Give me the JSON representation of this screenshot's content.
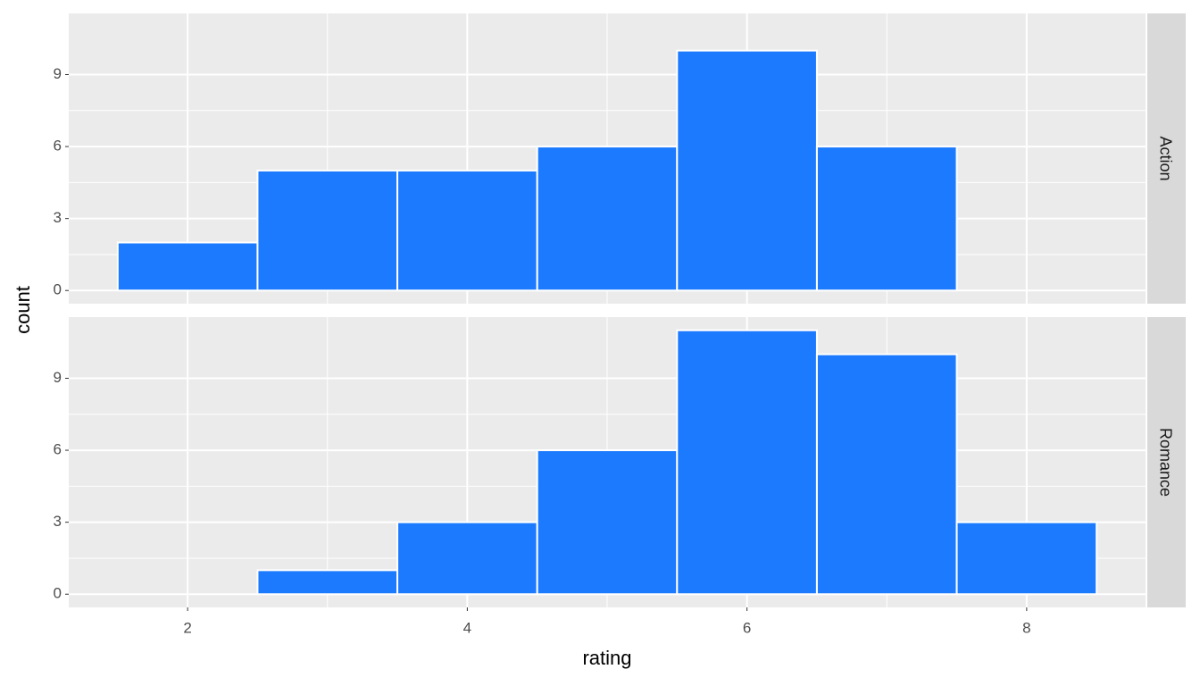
{
  "chart_data": {
    "type": "histogram",
    "xlabel": "rating",
    "ylabel": "count",
    "bins": [
      1.5,
      2.5,
      3.5,
      4.5,
      5.5,
      6.5,
      7.5,
      8.5
    ],
    "series": [
      {
        "name": "Action",
        "values": [
          2,
          5,
          5,
          6,
          10,
          6,
          0
        ]
      },
      {
        "name": "Romance",
        "values": [
          0,
          1,
          3,
          6,
          11,
          10,
          3
        ]
      }
    ],
    "color": "#1c7aff",
    "xlim": [
      1.15,
      8.85
    ],
    "xticks": [
      2,
      4,
      6,
      8
    ],
    "ylim": [
      -0.55,
      11.55
    ],
    "yticks": [
      0,
      3,
      6,
      9
    ],
    "grid": true
  }
}
